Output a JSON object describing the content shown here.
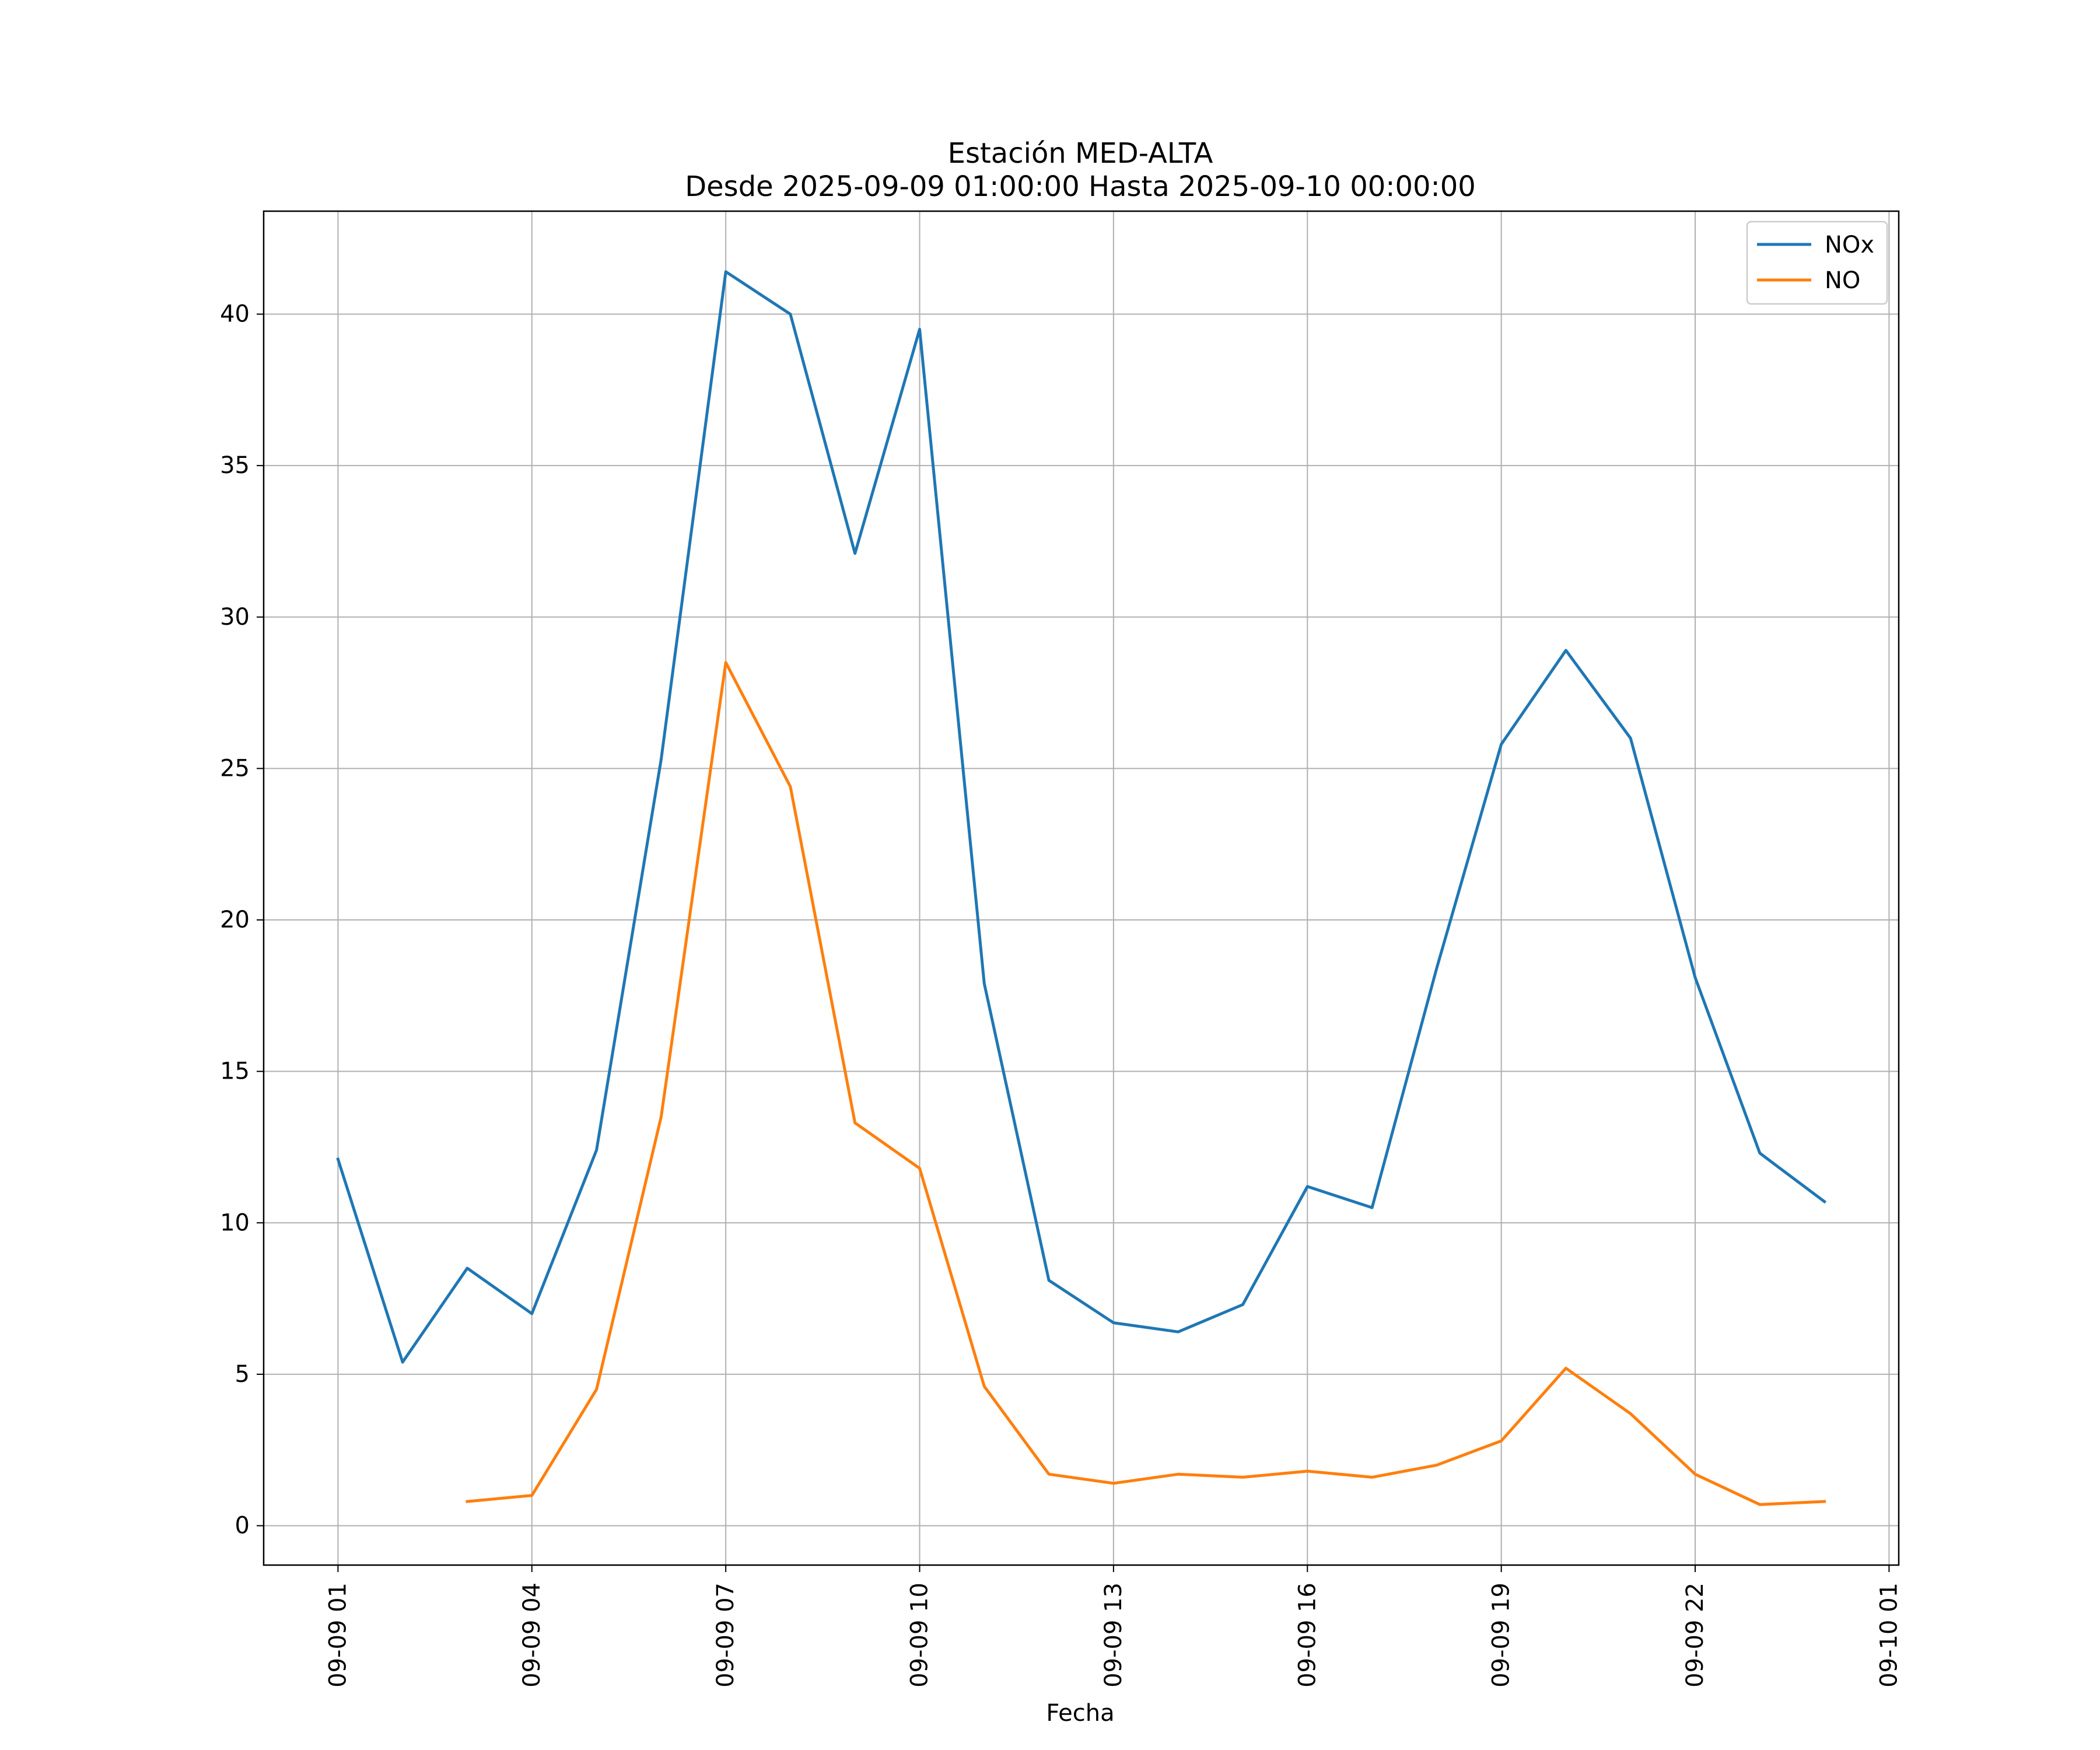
{
  "chart_data": {
    "type": "line",
    "title": "Estación MED-ALTA",
    "subtitle": "Desde 2025-09-09 01:00:00 Hasta 2025-09-10 00:00:00",
    "xlabel": "Fecha",
    "ylabel": "",
    "x": [
      "2025-09-09 01:00",
      "2025-09-09 02:00",
      "2025-09-09 03:00",
      "2025-09-09 04:00",
      "2025-09-09 05:00",
      "2025-09-09 06:00",
      "2025-09-09 07:00",
      "2025-09-09 08:00",
      "2025-09-09 09:00",
      "2025-09-09 10:00",
      "2025-09-09 11:00",
      "2025-09-09 12:00",
      "2025-09-09 13:00",
      "2025-09-09 14:00",
      "2025-09-09 15:00",
      "2025-09-09 16:00",
      "2025-09-09 17:00",
      "2025-09-09 18:00",
      "2025-09-09 19:00",
      "2025-09-09 20:00",
      "2025-09-09 21:00",
      "2025-09-09 22:00",
      "2025-09-09 23:00",
      "2025-09-10 00:00"
    ],
    "series": [
      {
        "name": "NOx",
        "color": "#1f77b4",
        "values": [
          12.1,
          5.4,
          8.5,
          7.0,
          12.4,
          25.3,
          41.4,
          40.0,
          32.1,
          39.5,
          17.9,
          8.1,
          6.7,
          6.4,
          7.3,
          11.2,
          10.5,
          18.4,
          25.8,
          28.9,
          26.0,
          18.1,
          12.3,
          10.7
        ]
      },
      {
        "name": "NO",
        "color": "#ff7f0e",
        "values": [
          null,
          null,
          0.8,
          1.0,
          4.5,
          13.5,
          28.5,
          24.4,
          13.3,
          11.8,
          4.6,
          1.7,
          1.4,
          1.7,
          1.6,
          1.8,
          1.6,
          2.0,
          2.8,
          5.2,
          3.7,
          1.7,
          0.7,
          0.8
        ]
      }
    ],
    "xticks": [
      "09-09 01",
      "09-09 04",
      "09-09 07",
      "09-09 10",
      "09-09 13",
      "09-09 16",
      "09-09 19",
      "09-09 22",
      "09-10 01"
    ],
    "xtick_hours": [
      1,
      4,
      7,
      10,
      13,
      16,
      19,
      22,
      25
    ],
    "xlim_hours": [
      -0.15,
      25.15
    ],
    "yticks": [
      "0",
      "5",
      "10",
      "15",
      "20",
      "25",
      "30",
      "35",
      "40"
    ],
    "ytick_values": [
      0,
      5,
      10,
      15,
      20,
      25,
      30,
      35,
      40
    ],
    "ylim": [
      -1.3,
      43.4
    ],
    "grid": true,
    "legend_position": "upper right"
  }
}
